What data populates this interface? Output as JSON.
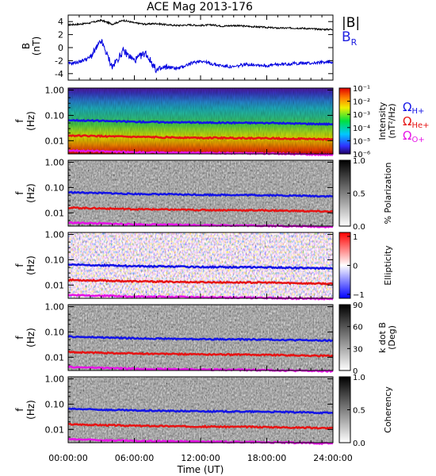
{
  "title": "ACE Mag 2013-176",
  "time_axis": {
    "label": "Time (UT)",
    "ticks": [
      "00:00:00",
      "06:00:00",
      "12:00:00",
      "18:00:00",
      "24:00:00"
    ]
  },
  "freq_axis": {
    "label_top": "f",
    "label_bottom": "(Hz)",
    "ticks": [
      "1.00",
      "0.10",
      "0.01"
    ]
  },
  "field_panel": {
    "ylabel_top": "B",
    "ylabel_bottom": "(nT)",
    "yticks": [
      "4",
      "2",
      "0",
      "-2",
      "-4"
    ],
    "legend_B": "|B|",
    "legend_BR": "B",
    "legend_BR_sub": "R"
  },
  "gyro_legend": [
    {
      "symbol": "Ω",
      "sub": "H+",
      "color": "#1414e6"
    },
    {
      "symbol": "Ω",
      "sub": "He+",
      "color": "#e61414"
    },
    {
      "symbol": "Ω",
      "sub": "O+",
      "color": "#e614e6"
    }
  ],
  "colorbars": [
    {
      "label": "Intensity",
      "label2": "(nT²/Hz)",
      "ticks": [
        "10⁻¹",
        "10⁻²",
        "10⁻³",
        "10⁻⁴",
        "10⁻⁵",
        "10⁻⁶"
      ]
    },
    {
      "label": "% Polarization",
      "label2": "",
      "ticks": [
        "1.0",
        "0.5",
        "0.0"
      ]
    },
    {
      "label": "Ellipticity",
      "label2": "",
      "ticks": [
        "1",
        "0",
        "−1"
      ]
    },
    {
      "label": "k dot B",
      "label2": "(Deg)",
      "ticks": [
        "90",
        "60",
        "30",
        "0"
      ]
    },
    {
      "label": "Coherency",
      "label2": "",
      "ticks": [
        "1.0",
        "0.5",
        "0.0"
      ]
    }
  ],
  "chart_data": {
    "type": "line",
    "title": "ACE Mag 2013-176",
    "x": {
      "label": "Time (UT)",
      "range": [
        0,
        24
      ],
      "unit": "hours"
    },
    "magnetic_field": {
      "ylim": [
        -5,
        5
      ],
      "series": [
        {
          "name": "|B|",
          "color": "#000000",
          "x": [
            0,
            1,
            2,
            3,
            4,
            5,
            6,
            7,
            8,
            9,
            10,
            11,
            12,
            13,
            14,
            15,
            16,
            17,
            18,
            19,
            20,
            21,
            22,
            23,
            24
          ],
          "y": [
            3.5,
            3.6,
            3.8,
            4.2,
            3.6,
            4.2,
            3.8,
            3.6,
            3.7,
            3.5,
            3.4,
            3.5,
            3.4,
            3.5,
            3.3,
            3.4,
            3.3,
            3.2,
            3.1,
            3.0,
            3.0,
            3.0,
            2.9,
            2.8,
            2.8
          ]
        },
        {
          "name": "B_R",
          "color": "#0000e0",
          "x": [
            0,
            1,
            2,
            3,
            4,
            5,
            6,
            7,
            8,
            9,
            10,
            11,
            12,
            13,
            14,
            15,
            16,
            17,
            18,
            19,
            20,
            21,
            22,
            23,
            24
          ],
          "y": [
            -2.5,
            -2.2,
            -1.5,
            1.0,
            -3.0,
            -0.5,
            -2.0,
            -0.8,
            -3.5,
            -3.0,
            -3.2,
            -2.5,
            -2.0,
            -2.5,
            -2.8,
            -3.0,
            -2.6,
            -2.6,
            -2.8,
            -2.6,
            -2.5,
            -2.4,
            -2.4,
            -2.3,
            -2.2
          ]
        }
      ]
    },
    "spectrogram_panels": [
      "Intensity",
      "% Polarization",
      "Ellipticity",
      "k dot B",
      "Coherency"
    ],
    "frequency_range_hz": [
      0.003,
      1.2
    ],
    "frequency_scale": "log",
    "gyrofrequency_lines": [
      {
        "name": "H+",
        "color": "#1414e6",
        "x": [
          0,
          6,
          12,
          18,
          24
        ],
        "y": [
          0.065,
          0.056,
          0.052,
          0.05,
          0.045
        ]
      },
      {
        "name": "He+",
        "color": "#e61414",
        "x": [
          0,
          6,
          12,
          18,
          24
        ],
        "y": [
          0.016,
          0.014,
          0.013,
          0.0125,
          0.0112
        ]
      },
      {
        "name": "O+",
        "color": "#e614e6",
        "x": [
          0,
          6,
          12,
          18,
          24
        ],
        "y": [
          0.0041,
          0.0035,
          0.0033,
          0.0031,
          0.0028
        ]
      }
    ],
    "colorbar_ranges": [
      {
        "panel": "Intensity",
        "range": [
          1e-06,
          0.1
        ],
        "scale": "log"
      },
      {
        "panel": "% Polarization",
        "range": [
          0,
          1
        ]
      },
      {
        "panel": "Ellipticity",
        "range": [
          -1,
          1
        ]
      },
      {
        "panel": "k dot B",
        "range": [
          0,
          90
        ]
      },
      {
        "panel": "Coherency",
        "range": [
          0,
          1
        ]
      }
    ]
  }
}
